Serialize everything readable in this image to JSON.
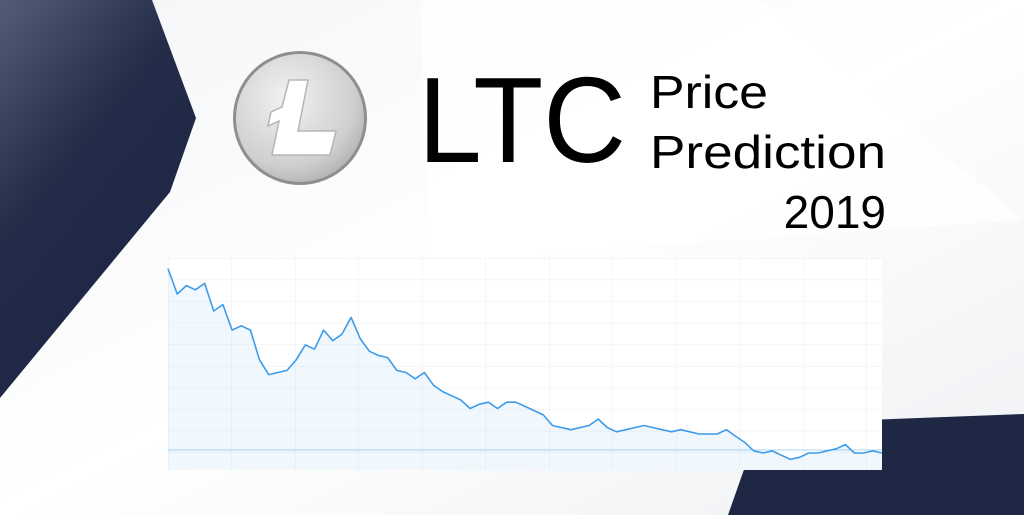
{
  "title": "LTC",
  "subtitle_lines": [
    "Price",
    "Prediction",
    "2019"
  ],
  "chart_data": {
    "type": "line",
    "color": "#3d9be9",
    "ylim": [
      0,
      100
    ],
    "values": [
      95,
      83,
      87,
      85,
      88,
      75,
      78,
      66,
      68,
      66,
      52,
      45,
      46,
      47,
      52,
      59,
      57,
      66,
      61,
      64,
      72,
      62,
      56,
      54,
      53,
      47,
      46,
      43,
      46,
      40,
      37,
      35,
      33,
      29,
      31,
      32,
      29,
      32,
      32,
      30,
      28,
      26,
      21,
      20,
      19,
      20,
      21,
      24,
      20,
      18,
      19,
      20,
      21,
      20,
      19,
      18,
      19,
      18,
      17,
      17,
      17,
      19,
      16,
      13,
      9,
      8,
      9,
      7,
      5,
      6,
      8,
      8,
      9,
      10,
      12,
      8,
      8,
      9,
      8
    ]
  }
}
